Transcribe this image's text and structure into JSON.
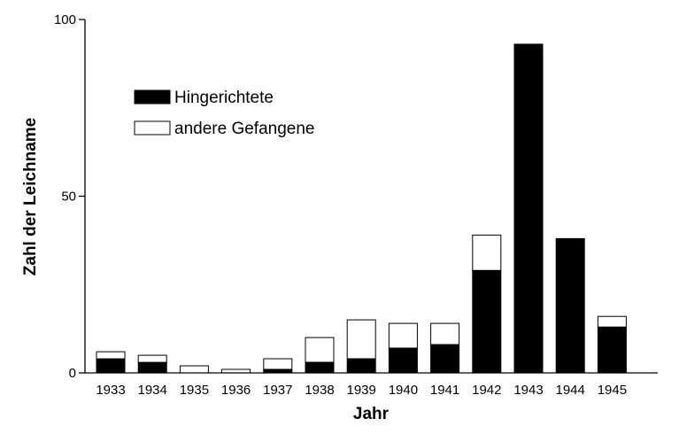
{
  "chart_data": {
    "type": "bar",
    "stacked": true,
    "categories": [
      "1933",
      "1934",
      "1935",
      "1936",
      "1937",
      "1938",
      "1939",
      "1940",
      "1941",
      "1942",
      "1943",
      "1944",
      "1945"
    ],
    "series": [
      {
        "name": "Hingerichtete",
        "color": "#000000",
        "values": [
          4,
          3,
          0,
          0,
          1,
          3,
          4,
          7,
          8,
          29,
          93,
          38,
          13
        ]
      },
      {
        "name": "andere Gefangene",
        "color": "#ffffff",
        "values": [
          2,
          2,
          2,
          1,
          3,
          7,
          11,
          7,
          6,
          10,
          0,
          0,
          3
        ]
      }
    ],
    "xlabel": "Jahr",
    "ylabel": "Zahl der Leichname",
    "ylim": [
      0,
      100
    ],
    "yticks": [
      "0",
      "50",
      "100"
    ],
    "grid": false,
    "legend_position": "top-left"
  }
}
